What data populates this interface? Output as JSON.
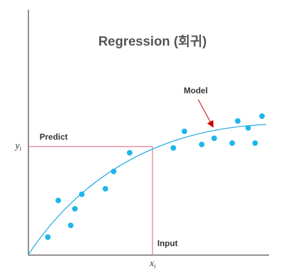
{
  "title": "Regression (회귀)",
  "labels": {
    "model": "Model",
    "predict": "Predict",
    "input": "Input"
  },
  "axis": {
    "y_var": "y",
    "y_sub": "i",
    "x_var": "x",
    "x_sub": "i"
  },
  "colors": {
    "axis": "#222222",
    "curve": "#29abe2",
    "points": "#1fb5ec",
    "guide": "#e05a78",
    "arrow": "#cc0000"
  }
}
